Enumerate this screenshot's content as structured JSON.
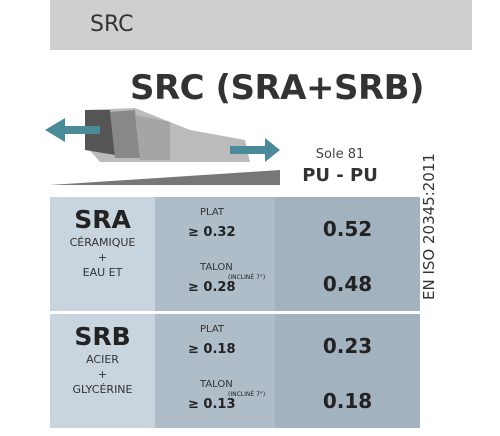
{
  "header": {
    "title": "SRC"
  },
  "title": "SRC (SRA+SRB)",
  "sole": {
    "label": "Sole 81",
    "material": "PU - PU"
  },
  "standard": "EN ISO 20345:2011",
  "table": {
    "rows": [
      {
        "name": "SRA",
        "desc": [
          "CÉRAMIQUE",
          "+",
          "EAU ET"
        ],
        "conditions": [
          {
            "label": "PLAT",
            "threshold": "≥ 0.32",
            "result": "0.52"
          },
          {
            "label": "TALON",
            "note": "(INCLINÉ 7°)",
            "threshold": "≥ 0.28",
            "result": "0.48"
          }
        ]
      },
      {
        "name": "SRB",
        "desc": [
          "ACIER",
          "+",
          "GLYCÉRINE"
        ],
        "conditions": [
          {
            "label": "PLAT",
            "threshold": "≥ 0.18",
            "result": "0.23"
          },
          {
            "label": "TALON",
            "note": "(INCLINÉ 7°)",
            "threshold": "≥ 0.13",
            "result": "0.18"
          }
        ]
      }
    ]
  }
}
